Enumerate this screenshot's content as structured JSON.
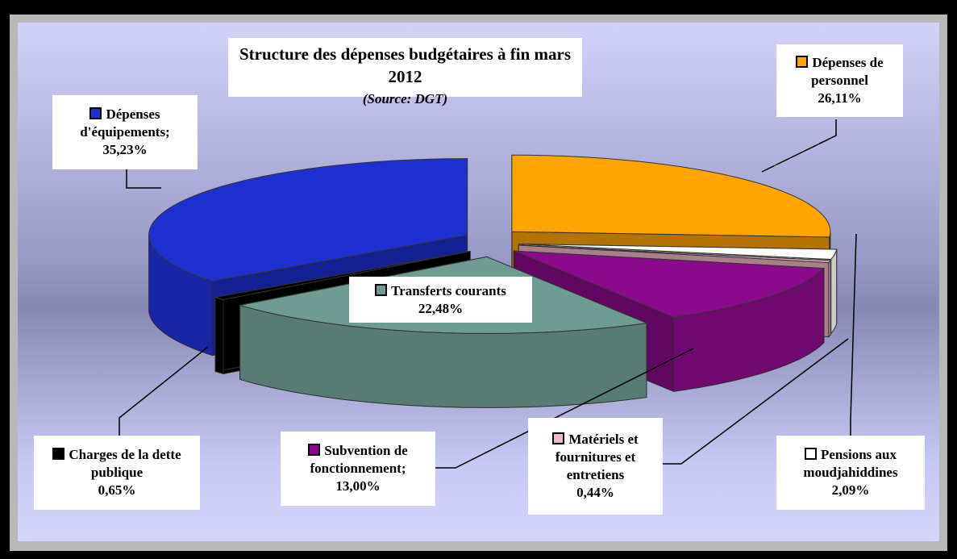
{
  "chart_data": {
    "type": "pie",
    "title": "Structure des dépenses budgétaires à fin mars 2012",
    "subtitle": "(Source: DGT)",
    "categories": [
      "Dépenses de personnel",
      "Pensions aux moudjahiddines",
      "Matériels et fournitures et entretiens",
      "Subvention de fonctionnement;",
      "Transferts courants",
      "Charges de la dette publique",
      "Dépenses d'équipements;"
    ],
    "values": [
      26.11,
      2.09,
      0.44,
      13.0,
      22.48,
      0.65,
      35.23
    ],
    "value_labels": [
      "26,11%",
      "2,09%",
      "0,44%",
      "13,00%",
      "22,48%",
      "0,65%",
      "35,23%"
    ],
    "colors": [
      "#FFA500",
      "#FFFFFF",
      "#F2B8C6",
      "#8B0A8B",
      "#6E9C92",
      "#000000",
      "#1E2FD0"
    ]
  }
}
